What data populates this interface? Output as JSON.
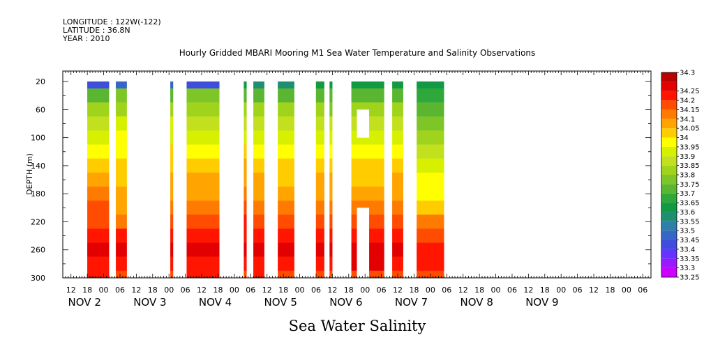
{
  "header": {
    "longitude": "LONGITUDE : 122W(-122)",
    "latitude": "LATITUDE : 36.8N",
    "year": "YEAR : 2010"
  },
  "footer_title": "Sea Water Salinity",
  "chart_data": {
    "type": "heatmap",
    "title": "Hourly Gridded MBARI Mooring M1 Sea Water Temperature and Salinity Observations",
    "xlabel": "",
    "ylabel": "DEPTH (m)",
    "colorbar_label": "",
    "x_axis": {
      "unit": "hours since 2010-11-01 00:00",
      "range": [
        9,
        225
      ],
      "hour_ticks": [
        {
          "x": 12,
          "label": "12"
        },
        {
          "x": 18,
          "label": "18"
        },
        {
          "x": 24,
          "label": "00"
        },
        {
          "x": 30,
          "label": "06"
        },
        {
          "x": 36,
          "label": "12"
        },
        {
          "x": 42,
          "label": "18"
        },
        {
          "x": 48,
          "label": "00"
        },
        {
          "x": 54,
          "label": "06"
        },
        {
          "x": 60,
          "label": "12"
        },
        {
          "x": 66,
          "label": "18"
        },
        {
          "x": 72,
          "label": "00"
        },
        {
          "x": 78,
          "label": "06"
        },
        {
          "x": 84,
          "label": "12"
        },
        {
          "x": 90,
          "label": "18"
        },
        {
          "x": 96,
          "label": "00"
        },
        {
          "x": 102,
          "label": "06"
        },
        {
          "x": 108,
          "label": "12"
        },
        {
          "x": 114,
          "label": "18"
        },
        {
          "x": 120,
          "label": "00"
        },
        {
          "x": 126,
          "label": "06"
        },
        {
          "x": 132,
          "label": "12"
        },
        {
          "x": 138,
          "label": "18"
        },
        {
          "x": 144,
          "label": "00"
        },
        {
          "x": 150,
          "label": "06"
        },
        {
          "x": 156,
          "label": "12"
        },
        {
          "x": 162,
          "label": "18"
        },
        {
          "x": 168,
          "label": "00"
        },
        {
          "x": 174,
          "label": "06"
        },
        {
          "x": 180,
          "label": "12"
        },
        {
          "x": 186,
          "label": "18"
        },
        {
          "x": 192,
          "label": "00"
        },
        {
          "x": 198,
          "label": "06"
        },
        {
          "x": 204,
          "label": "12"
        },
        {
          "x": 210,
          "label": "18"
        },
        {
          "x": 216,
          "label": "00"
        },
        {
          "x": 222,
          "label": "06"
        }
      ],
      "day_labels": [
        {
          "x": 17,
          "label": "NOV  2"
        },
        {
          "x": 41,
          "label": "NOV  3"
        },
        {
          "x": 65,
          "label": "NOV  4"
        },
        {
          "x": 89,
          "label": "NOV  5"
        },
        {
          "x": 113,
          "label": "NOV  6"
        },
        {
          "x": 137,
          "label": "NOV  7"
        },
        {
          "x": 161,
          "label": "NOV  8"
        },
        {
          "x": 185,
          "label": "NOV  9"
        }
      ]
    },
    "y_axis": {
      "range": [
        300,
        5
      ],
      "ticks": [
        20,
        60,
        100,
        140,
        180,
        220,
        260,
        300
      ]
    },
    "depth_bins": [
      20,
      40,
      60,
      80,
      100,
      120,
      140,
      160,
      180,
      200,
      220,
      240,
      260,
      280,
      300
    ],
    "colorbar": {
      "levels": [
        33.25,
        33.3,
        33.35,
        33.4,
        33.45,
        33.5,
        33.55,
        33.6,
        33.65,
        33.7,
        33.75,
        33.8,
        33.85,
        33.9,
        33.95,
        34,
        34.05,
        34.1,
        34.15,
        34.2,
        34.25,
        34.3
      ],
      "labels": [
        "33.25",
        "33.3",
        "33.35",
        "33.4",
        "33.45",
        "33.5",
        "33.55",
        "33.6",
        "33.65",
        "33.7",
        "33.75",
        "33.8",
        "33.85",
        "33.9",
        "33.95",
        "34",
        "34.05",
        "34.1",
        "34.15",
        "34.2",
        "34.25",
        "34.3"
      ],
      "colors": [
        "#cc00ff",
        "#9a1aff",
        "#6633ff",
        "#3f4ddd",
        "#3866c8",
        "#2f80a8",
        "#1f8f74",
        "#119a43",
        "#2ea83a",
        "#5ab630",
        "#7ec628",
        "#a0d41c",
        "#c2e01e",
        "#d6f000",
        "#ffff00",
        "#ffcc00",
        "#ffa400",
        "#ff7a00",
        "#ff4c00",
        "#ff1500",
        "#e30000",
        "#b80000"
      ]
    },
    "segments": [
      {
        "start": 18,
        "end": 26,
        "values": [
          33.4,
          33.7,
          33.8,
          33.85,
          33.9,
          33.95,
          34.0,
          34.05,
          34.1,
          34.15,
          34.15,
          34.2,
          34.27,
          34.2,
          34.2
        ]
      },
      {
        "start": 28.5,
        "end": 32.5,
        "values": [
          33.45,
          33.75,
          33.8,
          33.9,
          33.95,
          33.95,
          34.0,
          34.0,
          34.05,
          34.05,
          34.1,
          34.2,
          34.25,
          34.2,
          34.15
        ]
      },
      {
        "start": 48.5,
        "end": 49.5,
        "values": [
          33.45,
          33.7,
          33.8,
          33.9,
          33.9,
          34.0,
          34.0,
          34.05,
          34.05,
          34.1,
          34.15,
          34.2,
          34.25,
          34.2,
          34.15
        ]
      },
      {
        "start": 54.5,
        "end": 66.5,
        "values": [
          33.4,
          33.75,
          33.8,
          33.85,
          33.9,
          33.95,
          34.0,
          34.05,
          34.05,
          34.1,
          34.15,
          34.2,
          34.25,
          34.2,
          34.2
        ]
      },
      {
        "start": 75.5,
        "end": 76.5,
        "values": [
          33.6,
          33.7,
          33.8,
          33.85,
          33.9,
          34.0,
          34.05,
          34.05,
          34.1,
          34.15,
          34.2,
          34.2,
          34.25,
          34.2,
          34.15
        ]
      },
      {
        "start": 79,
        "end": 83,
        "values": [
          33.55,
          33.7,
          33.8,
          33.85,
          33.9,
          33.95,
          34.0,
          34.05,
          34.05,
          34.1,
          34.15,
          34.2,
          34.25,
          34.2,
          34.2
        ]
      },
      {
        "start": 88,
        "end": 94,
        "values": [
          33.55,
          33.7,
          33.8,
          33.85,
          33.9,
          33.95,
          34.0,
          34.0,
          34.05,
          34.1,
          34.15,
          34.2,
          34.25,
          34.2,
          34.15
        ]
      },
      {
        "start": 102,
        "end": 105,
        "values": [
          33.6,
          33.7,
          33.8,
          33.85,
          33.9,
          33.95,
          34.0,
          34.05,
          34.05,
          34.1,
          34.15,
          34.2,
          34.25,
          34.2,
          34.15
        ]
      },
      {
        "start": 107,
        "end": 108,
        "values": [
          33.6,
          33.7,
          33.75,
          33.85,
          33.9,
          33.95,
          34.0,
          34.05,
          34.05,
          34.1,
          34.15,
          34.2,
          34.25,
          34.2,
          34.15
        ]
      },
      {
        "start": 115,
        "end": 127,
        "values": [
          33.6,
          33.7,
          33.8,
          33.85,
          33.9,
          33.95,
          34.0,
          34.0,
          34.05,
          34.1,
          34.15,
          34.2,
          34.25,
          34.25,
          34.15
        ]
      },
      {
        "start": 130,
        "end": 134,
        "values": [
          33.6,
          33.7,
          33.8,
          33.85,
          33.9,
          33.95,
          34.0,
          34.05,
          34.05,
          34.1,
          34.15,
          34.2,
          34.25,
          34.2,
          34.15
        ]
      },
      {
        "start": 139,
        "end": 149,
        "values": [
          33.6,
          33.65,
          33.7,
          33.75,
          33.8,
          33.85,
          33.9,
          33.95,
          33.95,
          34.0,
          34.1,
          34.15,
          34.2,
          34.2,
          34.15
        ]
      }
    ],
    "missing_blocks": [
      {
        "x0": 117,
        "x1": 121.5,
        "y0": 60,
        "y1": 100
      },
      {
        "x0": 117,
        "x1": 121.5,
        "y0": 200,
        "y1": 300
      }
    ],
    "grid": false
  }
}
